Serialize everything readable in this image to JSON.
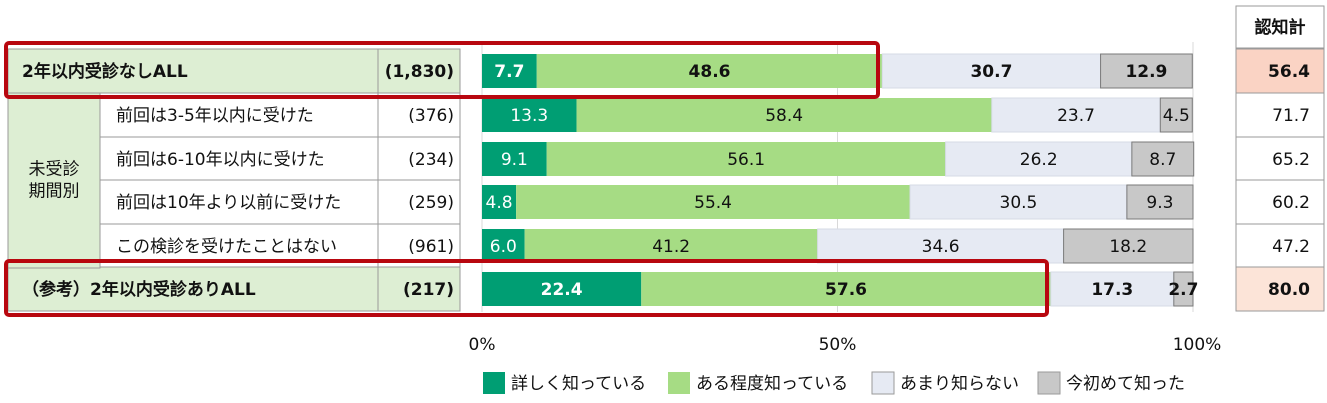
{
  "chart_data": {
    "type": "bar",
    "stacked": true,
    "orientation": "horizontal",
    "x_ticks": [
      "0%",
      "50%",
      "100%"
    ],
    "xlim": [
      0,
      100
    ],
    "grid": true,
    "legend_position": "bottom",
    "total_header": "認知計",
    "group_label": "未受診\n期間別",
    "series": [
      {
        "name": "詳しく知っている",
        "color": "#009E73"
      },
      {
        "name": "ある程度知っている",
        "color": "#A6DC84"
      },
      {
        "name": "あまり知らない",
        "color": "#E6EAF3"
      },
      {
        "name": "今初めて知った",
        "color": "#C8C8C8"
      }
    ],
    "rows": [
      {
        "label": "2年以内受診なしALL",
        "n": "(1,830)",
        "values": [
          7.7,
          48.6,
          30.7,
          12.9
        ],
        "labels": [
          "7.7",
          "48.6",
          "30.7",
          "12.9"
        ],
        "total": "56.4",
        "highlight": true,
        "bold": true
      },
      {
        "label": "前回は3-5年以内に受けた",
        "n": "(376)",
        "values": [
          13.3,
          58.4,
          23.7,
          4.5
        ],
        "labels": [
          "13.3",
          "58.4",
          "23.7",
          "4.5"
        ],
        "total": "71.7",
        "highlight": false,
        "bold": false
      },
      {
        "label": "前回は6-10年以内に受けた",
        "n": "(234)",
        "values": [
          9.1,
          56.1,
          26.2,
          8.7
        ],
        "labels": [
          "9.1",
          "56.1",
          "26.2",
          "8.7"
        ],
        "total": "65.2",
        "highlight": false,
        "bold": false
      },
      {
        "label": "前回は10年より以前に受けた",
        "n": "(259)",
        "values": [
          4.8,
          55.4,
          30.5,
          9.3
        ],
        "labels": [
          "4.8",
          "55.4",
          "30.5",
          "9.3"
        ],
        "total": "60.2",
        "highlight": false,
        "bold": false
      },
      {
        "label": "この検診を受けたことはない",
        "n": "(961)",
        "values": [
          6.0,
          41.2,
          34.6,
          18.2
        ],
        "labels": [
          "6.0",
          "41.2",
          "34.6",
          "18.2"
        ],
        "total": "47.2",
        "highlight": false,
        "bold": false
      },
      {
        "label": "（参考）2年以内受診ありALL",
        "n": "(217)",
        "values": [
          22.4,
          57.6,
          17.3,
          2.7
        ],
        "labels": [
          "22.4",
          "57.6",
          "17.3",
          "2.7"
        ],
        "total": "80.0",
        "highlight": true,
        "bold": true
      }
    ]
  }
}
